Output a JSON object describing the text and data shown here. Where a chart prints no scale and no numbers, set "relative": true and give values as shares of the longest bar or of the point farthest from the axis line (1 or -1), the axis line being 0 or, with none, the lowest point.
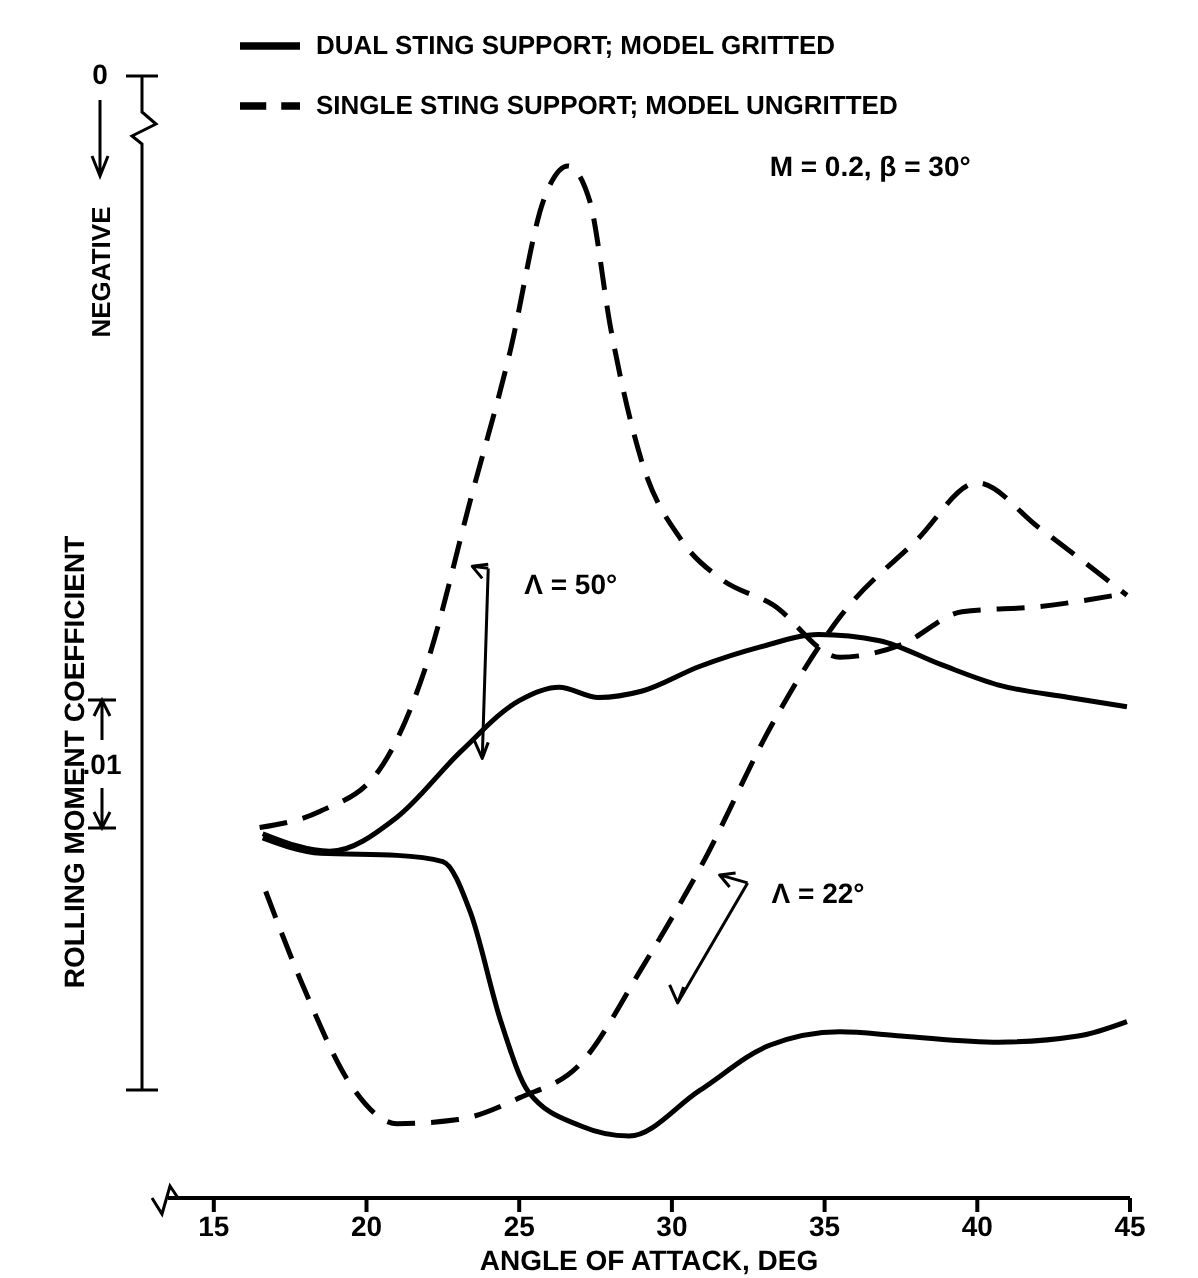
{
  "chart_data": {
    "type": "line",
    "xlabel": "ANGLE OF ATTACK, DEG",
    "ylabel": "ROLLING MOMENT COEFFICIENT",
    "relative": true,
    "xlim": [
      13.5,
      45
    ],
    "xticks": [
      15,
      20,
      25,
      30,
      35,
      40,
      45
    ],
    "legend": "top",
    "grid": false,
    "marker": "none",
    "series": [
      {
        "name": "DUAL STING SUPPORT; MODEL GRITTED",
        "color": "#000000",
        "line_style": "solid",
        "x": [
          16.6,
          18.8,
          21.0,
          23.1,
          25.0,
          26.3,
          27.6,
          29.0,
          30.9,
          32.9,
          34.8,
          36.8,
          38.8,
          40.7,
          43.0,
          44.9
        ],
        "values": [
          0.353,
          0.336,
          0.369,
          0.433,
          0.482,
          0.495,
          0.485,
          0.491,
          0.515,
          0.534,
          0.546,
          0.54,
          0.517,
          0.497,
          0.485,
          0.476
        ]
      },
      {
        "name": "SINGLE STING SUPPORT; MODEL UNGRITTED",
        "color": "#000000",
        "line_style": "dashed",
        "x": [
          16.5,
          18.5,
          20.4,
          22,
          23.4,
          24.7,
          25.8,
          26.6,
          27.3,
          28,
          29,
          30.3,
          31.6,
          33.3,
          35.5,
          37.5,
          39.5,
          42,
          44.9
        ],
        "values": [
          0.359,
          0.375,
          0.414,
          0.52,
          0.676,
          0.82,
          0.967,
          1,
          0.967,
          0.842,
          0.715,
          0.638,
          0.6,
          0.575,
          0.524,
          0.536,
          0.568,
          0.573,
          0.586
        ]
      },
      {
        "color": "#000000",
        "line_style": "solid",
        "x": [
          16.6,
          18.5,
          21,
          22.5,
          23.4,
          24.4,
          25.3,
          27,
          28.6,
          30.9,
          33.2,
          35.5,
          37.5,
          40.7,
          43.3,
          44.9
        ],
        "values": [
          0.349,
          0.334,
          0.332,
          0.326,
          0.277,
          0.171,
          0.103,
          0.07,
          0.06,
          0.104,
          0.148,
          0.161,
          0.157,
          0.151,
          0.157,
          0.171
        ]
      },
      {
        "color": "#000000",
        "line_style": "dashed",
        "x": [
          16.7,
          18,
          19.5,
          21,
          23,
          25,
          27,
          29,
          31,
          33.3,
          35.5,
          38,
          40,
          42,
          44.9
        ],
        "values": [
          0.297,
          0.2,
          0.109,
          0.072,
          0.076,
          0.097,
          0.13,
          0.222,
          0.324,
          0.46,
          0.563,
          0.637,
          0.693,
          0.65,
          0.584
        ]
      }
    ],
    "annotations": [
      "M = 0.2, β = 30°",
      "0",
      "NEGATIVE",
      ".01",
      {
        "text": "Λ = 50°",
        "x": 23.2,
        "y": 0.614
      },
      {
        "text": "Λ = 22°",
        "x": 31.3,
        "y": 0.315
      }
    ]
  }
}
